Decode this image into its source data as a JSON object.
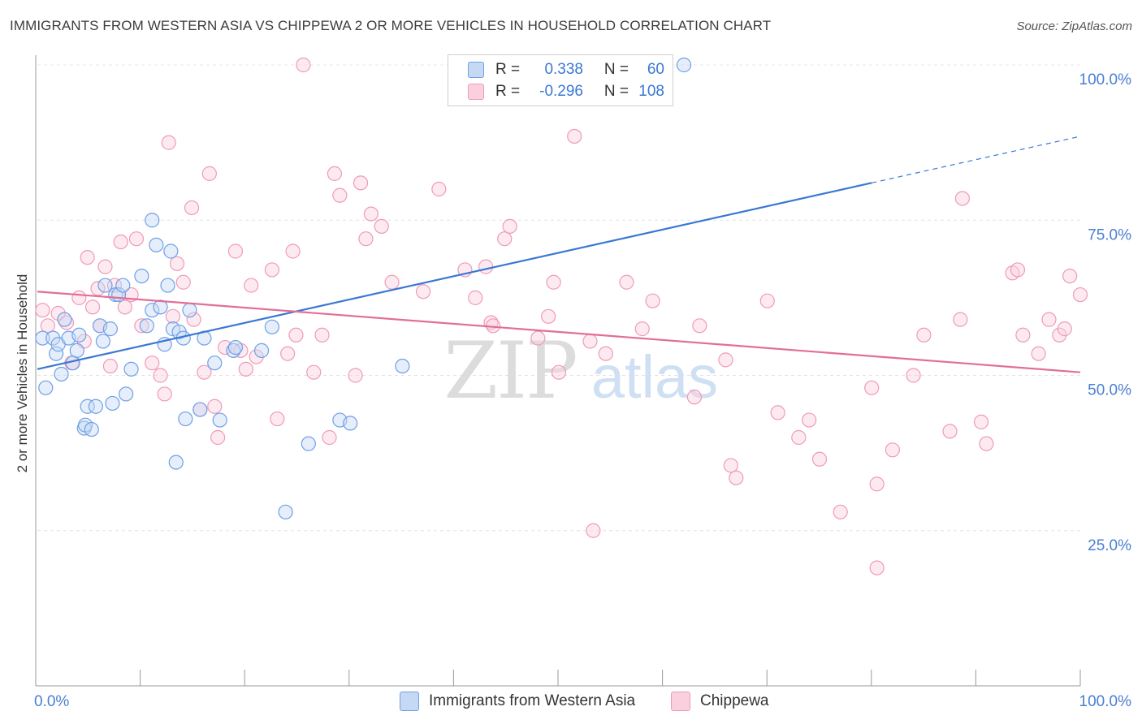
{
  "title": "IMMIGRANTS FROM WESTERN ASIA VS CHIPPEWA 2 OR MORE VEHICLES IN HOUSEHOLD CORRELATION CHART",
  "source": "Source: ZipAtlas.com",
  "watermark": {
    "zip": "ZIP",
    "atlas": "atlas"
  },
  "legend": {
    "rows": [
      {
        "r_label": "R =",
        "r_value": "0.338",
        "n_label": "N =",
        "n_value": "60"
      },
      {
        "r_label": "R =",
        "r_value": "-0.296",
        "n_label": "N =",
        "n_value": "108"
      }
    ]
  },
  "bottom_legend": [
    "Immigrants from Western Asia",
    "Chippewa"
  ],
  "chart_data": {
    "type": "scatter",
    "ylabel": "2 or more Vehicles in Household",
    "xlim": [
      0,
      100
    ],
    "ylim": [
      0,
      100
    ],
    "x_tick_labels": [
      "0.0%",
      "100.0%"
    ],
    "y_tick_labels": [
      "25.0%",
      "50.0%",
      "75.0%",
      "100.0%"
    ],
    "y_ticks": [
      25,
      50,
      75,
      100
    ],
    "grid": true,
    "colors": {
      "blue": "#6fa0e6",
      "pink": "#ef9ab8",
      "blue_line": "#3a78d4",
      "pink_line": "#e26e97",
      "tick_label": "#4a7fd1"
    },
    "series": [
      {
        "name": "Immigrants from Western Asia",
        "color": "#6fa0e6",
        "trend": {
          "x": [
            0,
            80
          ],
          "y": [
            51,
            81
          ],
          "dashed_extension": {
            "x": [
              80,
              100
            ],
            "y": [
              81,
              88.5
            ]
          }
        },
        "points": [
          [
            0.5,
            56
          ],
          [
            0.8,
            48
          ],
          [
            1.5,
            56
          ],
          [
            1.8,
            53.5
          ],
          [
            2,
            55
          ],
          [
            2.3,
            50.2
          ],
          [
            2.6,
            59
          ],
          [
            3,
            56
          ],
          [
            3.4,
            52
          ],
          [
            3.8,
            54
          ],
          [
            4,
            56.5
          ],
          [
            4.5,
            41.5
          ],
          [
            4.6,
            42
          ],
          [
            4.8,
            45
          ],
          [
            5.2,
            41.3
          ],
          [
            5.6,
            45
          ],
          [
            6,
            58
          ],
          [
            6.3,
            55.5
          ],
          [
            6.5,
            64.5
          ],
          [
            7,
            57.5
          ],
          [
            7.2,
            45.5
          ],
          [
            7.5,
            63
          ],
          [
            7.8,
            63
          ],
          [
            8.2,
            64.5
          ],
          [
            8.5,
            47
          ],
          [
            9,
            51
          ],
          [
            10,
            66
          ],
          [
            10.5,
            58
          ],
          [
            11,
            60.5
          ],
          [
            11,
            75
          ],
          [
            11.4,
            71
          ],
          [
            11.8,
            61
          ],
          [
            12.2,
            55
          ],
          [
            12.5,
            64.5
          ],
          [
            12.8,
            70
          ],
          [
            13,
            57.5
          ],
          [
            13.3,
            36
          ],
          [
            13.6,
            57
          ],
          [
            14,
            56
          ],
          [
            14.2,
            43
          ],
          [
            14.6,
            60.5
          ],
          [
            15.6,
            44.5
          ],
          [
            16,
            56
          ],
          [
            17,
            52
          ],
          [
            17.5,
            42.8
          ],
          [
            18.8,
            54
          ],
          [
            19,
            54.5
          ],
          [
            21.5,
            54
          ],
          [
            22.5,
            57.8
          ],
          [
            23.8,
            28
          ],
          [
            26,
            39
          ],
          [
            29,
            42.8
          ],
          [
            30,
            42.3
          ],
          [
            35,
            51.5
          ],
          [
            62,
            100
          ]
        ]
      },
      {
        "name": "Chippewa",
        "color": "#ef9ab8",
        "trend": {
          "x": [
            0,
            100
          ],
          "y": [
            63.5,
            50.5
          ]
        },
        "points": [
          [
            0.5,
            60.5
          ],
          [
            1,
            58
          ],
          [
            2,
            60
          ],
          [
            2.8,
            58.5
          ],
          [
            3.3,
            52
          ],
          [
            4,
            62.5
          ],
          [
            4.5,
            55.5
          ],
          [
            4.8,
            69
          ],
          [
            5.3,
            61
          ],
          [
            5.8,
            64
          ],
          [
            6,
            58
          ],
          [
            6.5,
            67.5
          ],
          [
            7,
            51.5
          ],
          [
            7.4,
            64.5
          ],
          [
            8,
            71.5
          ],
          [
            8.4,
            61
          ],
          [
            9,
            63
          ],
          [
            9.5,
            72
          ],
          [
            10,
            58
          ],
          [
            11,
            52
          ],
          [
            11.8,
            50
          ],
          [
            12.2,
            47
          ],
          [
            12.6,
            87.5
          ],
          [
            13,
            59.5
          ],
          [
            13.4,
            68
          ],
          [
            14,
            65
          ],
          [
            14.8,
            77
          ],
          [
            15,
            59
          ],
          [
            15.6,
            44.5
          ],
          [
            16,
            50.5
          ],
          [
            16.5,
            82.5
          ],
          [
            17,
            45
          ],
          [
            17.3,
            40
          ],
          [
            18,
            54.5
          ],
          [
            19,
            70
          ],
          [
            19.5,
            54
          ],
          [
            20,
            51
          ],
          [
            20.5,
            64.5
          ],
          [
            21,
            53
          ],
          [
            22.5,
            67
          ],
          [
            23,
            43
          ],
          [
            24,
            53.5
          ],
          [
            24.5,
            70
          ],
          [
            24.8,
            56.5
          ],
          [
            25.5,
            100
          ],
          [
            26.5,
            50.5
          ],
          [
            27.3,
            56.5
          ],
          [
            28,
            40
          ],
          [
            28.5,
            82.5
          ],
          [
            29,
            79
          ],
          [
            30.5,
            50
          ],
          [
            31,
            81
          ],
          [
            31.5,
            72
          ],
          [
            32,
            76
          ],
          [
            33,
            74
          ],
          [
            34,
            65
          ],
          [
            37,
            63.5
          ],
          [
            38.5,
            80
          ],
          [
            41,
            67
          ],
          [
            42,
            62.5
          ],
          [
            43,
            67.5
          ],
          [
            43.5,
            58.5
          ],
          [
            43.7,
            58
          ],
          [
            44.8,
            72
          ],
          [
            45.3,
            74
          ],
          [
            48,
            56
          ],
          [
            49,
            59.5
          ],
          [
            49.5,
            65
          ],
          [
            50,
            50.5
          ],
          [
            51.5,
            88.5
          ],
          [
            53,
            55.5
          ],
          [
            53.3,
            25
          ],
          [
            54.5,
            53.5
          ],
          [
            56.5,
            65
          ],
          [
            58,
            57.5
          ],
          [
            59,
            62
          ],
          [
            63,
            46.5
          ],
          [
            63.5,
            58
          ],
          [
            66,
            52.5
          ],
          [
            66.5,
            35.5
          ],
          [
            67,
            33.5
          ],
          [
            70,
            62
          ],
          [
            71,
            44
          ],
          [
            73,
            40
          ],
          [
            74,
            42.8
          ],
          [
            75,
            36.5
          ],
          [
            77,
            28
          ],
          [
            80,
            48
          ],
          [
            80.5,
            19
          ],
          [
            80.5,
            32.5
          ],
          [
            82,
            38
          ],
          [
            84,
            50
          ],
          [
            85,
            56.5
          ],
          [
            87.5,
            41
          ],
          [
            88.5,
            59
          ],
          [
            88.7,
            78.5
          ],
          [
            90.5,
            42.5
          ],
          [
            91,
            39
          ],
          [
            93.5,
            66.5
          ],
          [
            94,
            67
          ],
          [
            94.5,
            56.5
          ],
          [
            96,
            53.5
          ],
          [
            97,
            59
          ],
          [
            98,
            56.5
          ],
          [
            98.5,
            57.5
          ],
          [
            99,
            66
          ],
          [
            100,
            63
          ]
        ]
      }
    ]
  }
}
